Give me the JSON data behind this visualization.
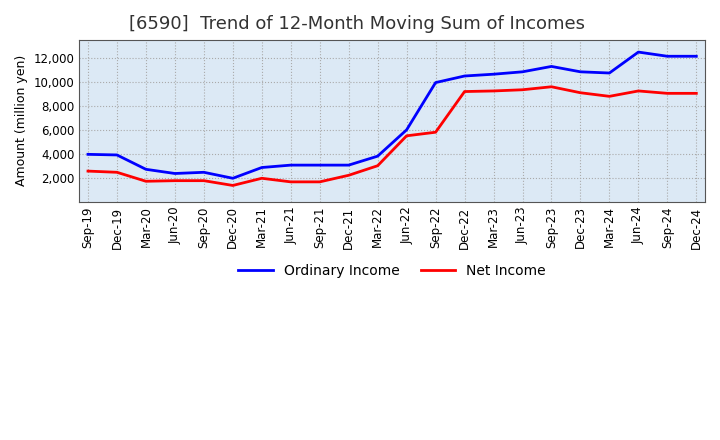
{
  "title": "[6590]  Trend of 12-Month Moving Sum of Incomes",
  "ylabel": "Amount (million yen)",
  "background_color": "#ffffff",
  "plot_bg_color": "#dce9f5",
  "grid_color": "#aaaaaa",
  "tick_labels": [
    "Sep-19",
    "Dec-19",
    "Mar-20",
    "Jun-20",
    "Sep-20",
    "Dec-20",
    "Mar-21",
    "Jun-21",
    "Sep-21",
    "Dec-21",
    "Mar-22",
    "Jun-22",
    "Sep-22",
    "Dec-22",
    "Mar-23",
    "Jun-23",
    "Sep-23",
    "Dec-23",
    "Mar-24",
    "Jun-24",
    "Sep-24",
    "Dec-24"
  ],
  "ordinary_income": [
    3950,
    3900,
    2700,
    2350,
    2450,
    1950,
    2850,
    3050,
    3050,
    3050,
    3800,
    6000,
    9950,
    10500,
    10650,
    10850,
    11300,
    10850,
    10750,
    12500,
    12150,
    12150
  ],
  "net_income": [
    2550,
    2450,
    1700,
    1750,
    1750,
    1350,
    1950,
    1650,
    1650,
    2200,
    3000,
    5500,
    5800,
    9200,
    9250,
    9350,
    9600,
    9100,
    8800,
    9250,
    9050,
    9050
  ],
  "ordinary_color": "#0000ff",
  "net_color": "#ff0000",
  "line_width": 2.0,
  "ylim": [
    0,
    13500
  ],
  "yticks": [
    2000,
    4000,
    6000,
    8000,
    10000,
    12000
  ],
  "title_fontsize": 13,
  "legend_fontsize": 10,
  "axis_fontsize": 9,
  "tick_fontsize": 8.5
}
